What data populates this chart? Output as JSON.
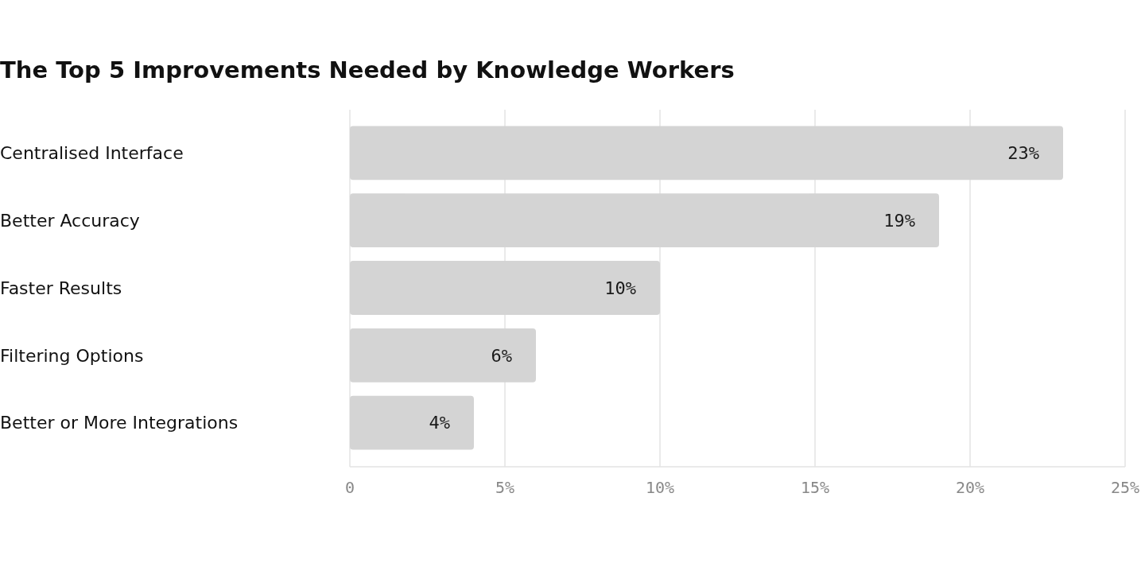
{
  "chart_data": {
    "type": "bar",
    "orientation": "horizontal",
    "title": "The Top 5 Improvements Needed by Knowledge Workers",
    "categories": [
      "Centralised Interface",
      "Better Accuracy",
      "Faster Results",
      "Filtering Options",
      "Better or More Integrations"
    ],
    "values": [
      23,
      19,
      10,
      6,
      4
    ],
    "value_labels": [
      "23%",
      "19%",
      "10%",
      "6%",
      "4%"
    ],
    "color": "#d4d4d4",
    "xlim": [
      0,
      25
    ],
    "xticks": [
      0,
      {
        "value": 5,
        "label": "5%"
      },
      {
        "value": 10,
        "label": "10%"
      },
      {
        "value": 15,
        "label": "15%"
      },
      {
        "value": 20,
        "label": "20%"
      },
      {
        "value": 25,
        "label": "25%"
      }
    ],
    "grid": "x"
  }
}
